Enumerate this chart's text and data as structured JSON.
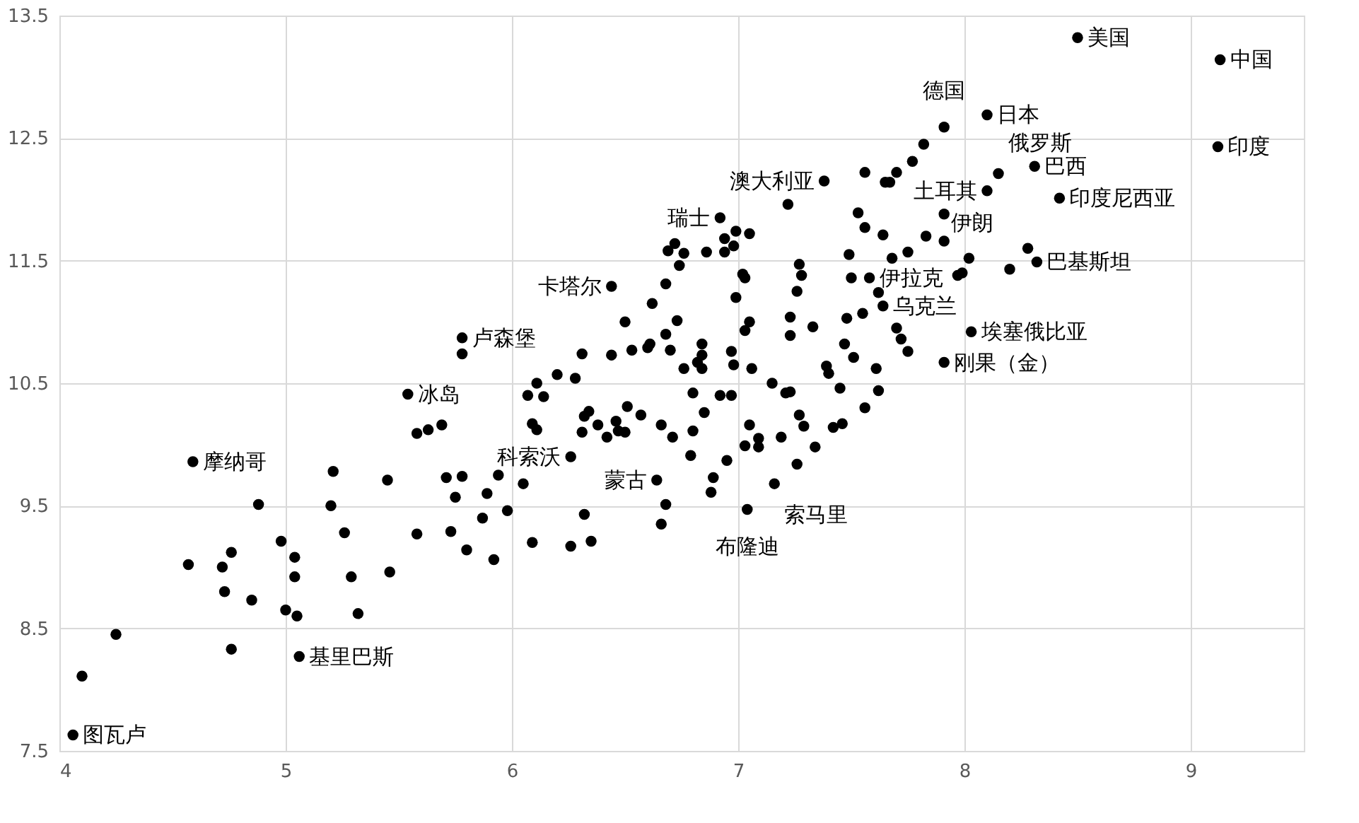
{
  "chart_data": {
    "type": "scatter",
    "marker": "circle",
    "grid": true,
    "xlim": [
      4,
      9.5
    ],
    "xticks": [
      4,
      5,
      6,
      7,
      8,
      9
    ],
    "ylim": [
      7.5,
      13.5
    ],
    "yticks": [
      7.5,
      8.5,
      9.5,
      10.5,
      11.5,
      12.5,
      13.5
    ],
    "series": [
      {
        "color": "#000000",
        "x": [
          5.54,
          5.58,
          5.63,
          5.69,
          4.59,
          5.21,
          5.45,
          5.71,
          5.78,
          5.75,
          4.88,
          5.2,
          5.26,
          5.58,
          5.73,
          5.8,
          4.98,
          4.76,
          5.04,
          4.57,
          4.72,
          5.04,
          5.29,
          5.46,
          4.73,
          4.85,
          5.0,
          5.05,
          5.32,
          4.25,
          4.76,
          5.06,
          4.1,
          4.06,
          5.78,
          5.78,
          6.44,
          6.62,
          6.68,
          6.92,
          6.69,
          6.72,
          6.76,
          6.74,
          6.86,
          6.94,
          6.94,
          6.98,
          6.99,
          7.05,
          7.02,
          7.03,
          6.99,
          7.03,
          7.05,
          6.73,
          6.68,
          6.5,
          6.61,
          6.6,
          6.7,
          6.53,
          6.44,
          6.31,
          6.2,
          6.28,
          6.11,
          6.07,
          6.14,
          6.84,
          6.84,
          6.82,
          6.76,
          6.84,
          6.97,
          6.98,
          7.06,
          6.8,
          6.92,
          6.97,
          7.15,
          7.21,
          7.23,
          7.22,
          7.38,
          7.56,
          7.65,
          7.53,
          7.56,
          7.64,
          7.27,
          7.28,
          7.49,
          7.5,
          7.58,
          7.62,
          7.64,
          7.26,
          7.23,
          7.23,
          7.33,
          7.48,
          7.55,
          7.47,
          7.51,
          7.39,
          7.4,
          7.45,
          7.61,
          7.62,
          6.09,
          6.11,
          6.32,
          6.34,
          6.31,
          6.38,
          6.42,
          6.46,
          6.47,
          6.5,
          6.51,
          6.57,
          6.66,
          6.71,
          6.8,
          6.85,
          6.79,
          6.95,
          6.89,
          6.88,
          7.05,
          7.03,
          7.09,
          7.09,
          7.19,
          7.27,
          7.29,
          7.26,
          7.16,
          7.34,
          7.42,
          7.46,
          7.56,
          7.04,
          6.26,
          6.64,
          6.68,
          6.66,
          6.32,
          6.35,
          6.26,
          6.09,
          6.05,
          5.98,
          5.94,
          5.89,
          5.87,
          5.92,
          8.5,
          9.13,
          9.12,
          8.1,
          7.91,
          7.82,
          7.77,
          7.7,
          7.67,
          8.31,
          8.15,
          8.1,
          8.42,
          7.91,
          7.83,
          7.91,
          8.28,
          8.32,
          8.2,
          7.75,
          7.68,
          8.02,
          7.97,
          7.99,
          7.7,
          7.72,
          7.75,
          8.03,
          7.91
        ],
        "values": [
          10.41,
          10.09,
          10.12,
          10.16,
          9.86,
          9.78,
          9.71,
          9.73,
          9.74,
          9.57,
          9.51,
          9.5,
          9.28,
          9.27,
          9.29,
          9.14,
          9.21,
          9.12,
          9.08,
          9.02,
          9.0,
          8.92,
          8.92,
          8.96,
          8.8,
          8.73,
          8.65,
          8.6,
          8.62,
          8.45,
          8.33,
          8.27,
          8.11,
          7.63,
          10.87,
          10.74,
          11.29,
          11.15,
          11.31,
          11.85,
          11.58,
          11.64,
          11.56,
          11.46,
          11.57,
          11.68,
          11.57,
          11.62,
          11.74,
          11.72,
          11.39,
          11.36,
          11.2,
          10.93,
          11.0,
          11.01,
          10.9,
          11.0,
          10.82,
          10.79,
          10.77,
          10.77,
          10.73,
          10.74,
          10.57,
          10.54,
          10.5,
          10.4,
          10.39,
          10.82,
          10.73,
          10.67,
          10.62,
          10.62,
          10.76,
          10.65,
          10.62,
          10.42,
          10.4,
          10.4,
          10.5,
          10.42,
          10.43,
          11.96,
          12.15,
          12.22,
          12.14,
          11.89,
          11.77,
          11.71,
          11.47,
          11.38,
          11.55,
          11.36,
          11.36,
          11.24,
          11.13,
          11.25,
          11.04,
          10.89,
          10.96,
          11.03,
          11.07,
          10.82,
          10.71,
          10.64,
          10.58,
          10.46,
          10.62,
          10.44,
          10.17,
          10.12,
          10.23,
          10.27,
          10.1,
          10.16,
          10.06,
          10.19,
          10.11,
          10.1,
          10.31,
          10.24,
          10.16,
          10.06,
          10.11,
          10.26,
          9.91,
          9.87,
          9.73,
          9.61,
          10.16,
          9.99,
          10.05,
          9.98,
          10.06,
          10.24,
          10.15,
          9.84,
          9.68,
          9.98,
          10.14,
          10.17,
          10.3,
          9.47,
          9.9,
          9.71,
          9.51,
          9.35,
          9.43,
          9.21,
          9.17,
          9.2,
          9.68,
          9.46,
          9.75,
          9.6,
          9.4,
          9.06,
          13.32,
          13.14,
          12.43,
          12.69,
          12.59,
          12.45,
          12.31,
          12.22,
          12.14,
          12.27,
          12.21,
          12.07,
          12.01,
          11.88,
          11.7,
          11.66,
          11.6,
          11.49,
          11.43,
          11.57,
          11.52,
          11.52,
          11.38,
          11.4,
          10.95,
          10.86,
          10.76,
          10.92,
          10.67
        ]
      }
    ],
    "annotations": [
      {
        "text": "美国",
        "x": 8.5,
        "y": 13.32
      },
      {
        "text": "中国",
        "x": 9.13,
        "y": 13.14
      },
      {
        "text": "印度",
        "x": 9.12,
        "y": 12.43
      },
      {
        "text": "日本",
        "x": 8.1,
        "y": 12.69
      },
      {
        "text": "德国",
        "x": 7.91,
        "y": 12.59
      },
      {
        "text": "澳大利亚",
        "x": 7.38,
        "y": 12.15
      },
      {
        "text": "俄罗斯",
        "x": 8.15,
        "y": 12.21
      },
      {
        "text": "巴西",
        "x": 8.31,
        "y": 12.27
      },
      {
        "text": "土耳其",
        "x": 8.1,
        "y": 12.07
      },
      {
        "text": "印度尼西亚",
        "x": 8.42,
        "y": 12.01
      },
      {
        "text": "伊朗",
        "x": 7.91,
        "y": 11.66
      },
      {
        "text": "瑞士",
        "x": 6.92,
        "y": 11.85
      },
      {
        "text": "卡塔尔",
        "x": 6.44,
        "y": 11.29
      },
      {
        "text": "巴基斯坦",
        "x": 8.32,
        "y": 11.49
      },
      {
        "text": "伊拉克",
        "x": 7.58,
        "y": 11.36
      },
      {
        "text": "乌克兰",
        "x": 7.64,
        "y": 11.13
      },
      {
        "text": "卢森堡",
        "x": 5.78,
        "y": 10.87
      },
      {
        "text": "埃塞俄比亚",
        "x": 8.03,
        "y": 10.92
      },
      {
        "text": "刚果（金）",
        "x": 7.91,
        "y": 10.67
      },
      {
        "text": "冰岛",
        "x": 5.54,
        "y": 10.41
      },
      {
        "text": "摩纳哥",
        "x": 4.59,
        "y": 9.86
      },
      {
        "text": "蒙古",
        "x": 6.64,
        "y": 9.71
      },
      {
        "text": "科索沃",
        "x": 6.26,
        "y": 9.9
      },
      {
        "text": "索马里",
        "x": 7.16,
        "y": 9.68
      },
      {
        "text": "布隆迪",
        "x": 7.04,
        "y": 9.47
      },
      {
        "text": "基里巴斯",
        "x": 5.06,
        "y": 8.27
      },
      {
        "text": "图瓦卢",
        "x": 4.06,
        "y": 7.63
      }
    ]
  }
}
